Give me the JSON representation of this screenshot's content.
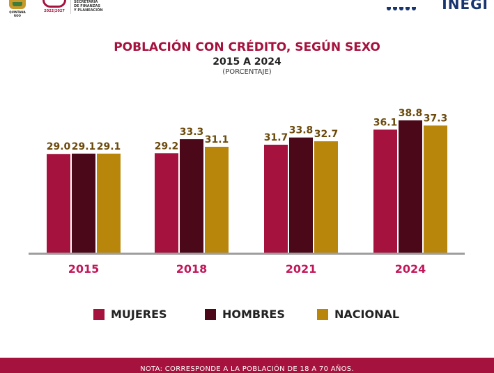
{
  "header": {
    "qroo_caption": "QUINTANA ROO",
    "sefiplan_years": "2022|2027",
    "sefiplan_text": "SECRETARÍA\nDE FINANZAS\nY PLANEACIÓN",
    "inegi_text": "INEGI"
  },
  "colors": {
    "mujeres": "#a5123e",
    "hombres": "#4a0818",
    "nacional": "#b8860b",
    "label": "#6b4a0c",
    "axis_label": "#c2185b",
    "baseline": "#9e9e9e"
  },
  "footer": {
    "note": "NOTA: CORRESPONDE A LA POBLACIÓN DE 18 A 70 AÑOS."
  },
  "chart_data": {
    "type": "bar",
    "title": "POBLACIÓN CON CRÉDITO, SEGÚN SEXO",
    "subtitle": "2015 A 2024",
    "unit": "(PORCENTAJE)",
    "categories": [
      "2015",
      "2018",
      "2021",
      "2024"
    ],
    "series": [
      {
        "name": "MUJERES",
        "color": "#a5123e",
        "values": [
          29.0,
          29.2,
          31.7,
          36.1
        ]
      },
      {
        "name": "HOMBRES",
        "color": "#4a0818",
        "values": [
          29.1,
          33.3,
          33.8,
          38.8
        ]
      },
      {
        "name": "NACIONAL",
        "color": "#b8860b",
        "values": [
          29.1,
          31.1,
          32.7,
          37.3
        ]
      }
    ],
    "ylim": [
      0,
      38.8
    ],
    "grid": false,
    "legend": "bottom",
    "value_labels": [
      "29.0",
      "29.1",
      "29.1",
      "29.2",
      "33.3",
      "31.1",
      "31.7",
      "33.8",
      "32.7",
      "36.1",
      "38.8",
      "37.3"
    ]
  }
}
